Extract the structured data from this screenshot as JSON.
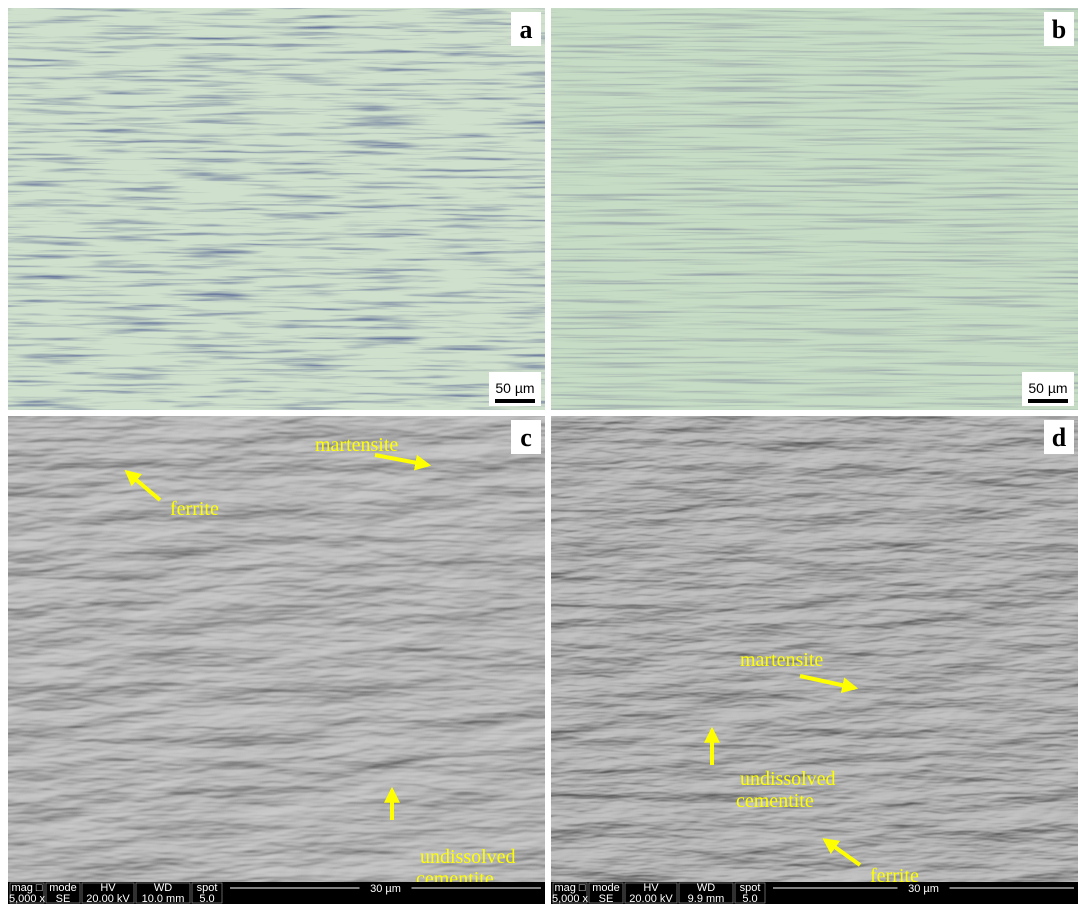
{
  "panels": [
    {
      "label": "a",
      "scale_bar": "50 µm"
    },
    {
      "label": "b",
      "scale_bar": "50 µm"
    },
    {
      "label": "c",
      "annotations": [
        {
          "lines": [
            "martensite"
          ]
        },
        {
          "lines": [
            "ferrite"
          ]
        },
        {
          "lines": [
            "undissolved",
            "cementite"
          ]
        }
      ],
      "info_bar": {
        "headers": [
          "mag □",
          "mode",
          "HV",
          "WD",
          "spot"
        ],
        "values": [
          "5,000 x",
          "SE",
          "20.00 kV",
          "10.0 mm",
          "5.0"
        ],
        "scale": "30 µm"
      }
    },
    {
      "label": "d",
      "annotations": [
        {
          "lines": [
            "martensite"
          ]
        },
        {
          "lines": [
            "undissolved",
            "cementite"
          ]
        },
        {
          "lines": [
            "ferrite"
          ]
        }
      ],
      "info_bar": {
        "headers": [
          "mag □",
          "mode",
          "HV",
          "WD",
          "spot"
        ],
        "values": [
          "5,000 x",
          "SE",
          "20.00 kV",
          "9.9 mm",
          "5.0"
        ],
        "scale": "30 µm"
      }
    }
  ]
}
